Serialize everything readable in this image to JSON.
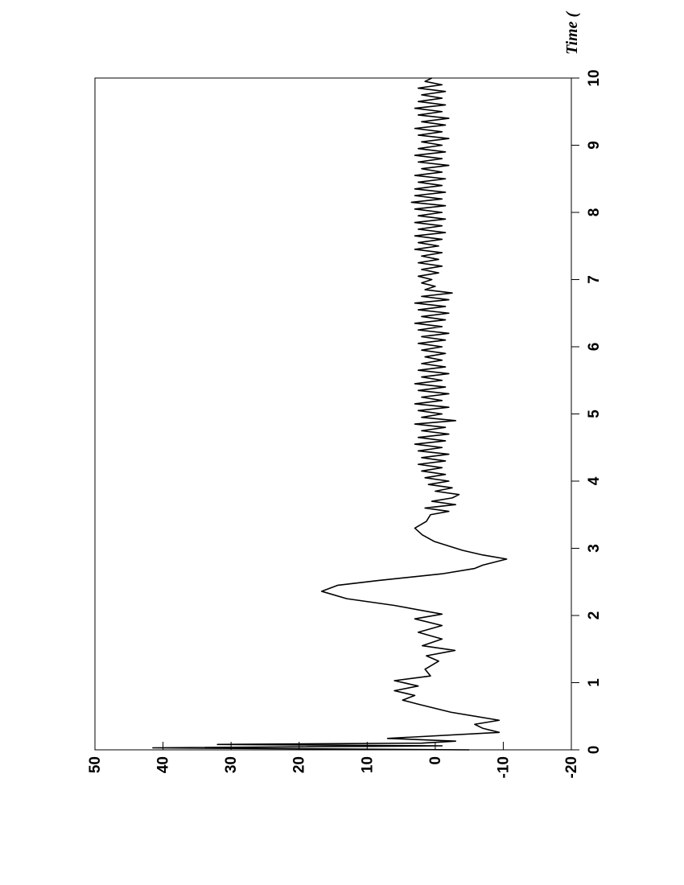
{
  "chart_data": {
    "type": "line",
    "x_label": "Time (",
    "x": [
      0,
      0.03,
      0.06,
      0.08,
      0.1,
      0.13,
      0.17,
      0.26,
      0.32,
      0.38,
      0.44,
      0.56,
      0.68,
      0.74,
      0.81,
      0.88,
      0.95,
      1.03,
      1.1,
      1.2,
      1.32,
      1.4,
      1.48,
      1.55,
      1.65,
      1.75,
      1.85,
      1.95,
      2.02,
      2.15,
      2.25,
      2.36,
      2.45,
      2.52,
      2.62,
      2.7,
      2.75,
      2.84,
      2.9,
      2.97,
      3.1,
      3.2,
      3.3,
      3.4,
      3.5,
      3.55,
      3.6,
      3.65,
      3.7,
      3.75,
      3.8,
      3.85,
      3.9,
      3.95,
      4.0,
      4.05,
      4.1,
      4.15,
      4.2,
      4.25,
      4.3,
      4.35,
      4.4,
      4.45,
      4.5,
      4.55,
      4.6,
      4.65,
      4.7,
      4.75,
      4.8,
      4.85,
      4.9,
      4.95,
      5.0,
      5.05,
      5.1,
      5.15,
      5.2,
      5.25,
      5.3,
      5.35,
      5.4,
      5.45,
      5.5,
      5.55,
      5.6,
      5.65,
      5.7,
      5.75,
      5.8,
      5.85,
      5.9,
      5.95,
      6.0,
      6.05,
      6.1,
      6.15,
      6.2,
      6.25,
      6.3,
      6.35,
      6.4,
      6.45,
      6.5,
      6.55,
      6.6,
      6.65,
      6.7,
      6.75,
      6.8,
      6.85,
      6.9,
      6.95,
      7.0,
      7.05,
      7.1,
      7.15,
      7.2,
      7.25,
      7.3,
      7.35,
      7.4,
      7.45,
      7.5,
      7.55,
      7.6,
      7.65,
      7.7,
      7.75,
      7.8,
      7.85,
      7.9,
      7.95,
      8.0,
      8.05,
      8.1,
      8.15,
      8.2,
      8.25,
      8.3,
      8.35,
      8.4,
      8.45,
      8.5,
      8.55,
      8.6,
      8.65,
      8.7,
      8.75,
      8.8,
      8.85,
      8.9,
      8.95,
      9.0,
      9.05,
      9.1,
      9.15,
      9.2,
      9.25,
      9.3,
      9.35,
      9.4,
      9.45,
      9.5,
      9.55,
      9.6,
      9.65,
      9.7,
      9.75,
      9.8,
      9.85,
      9.9,
      9.95,
      10.0
    ],
    "series": [
      {
        "color": "#000000",
        "values": [
          -5,
          41.5,
          -1,
          32,
          2,
          -3,
          7,
          -9.4,
          -7,
          -5.8,
          -9.4,
          -2.3,
          2.5,
          4.8,
          3,
          6,
          2.5,
          6,
          0.7,
          1.5,
          -0.5,
          1.3,
          -2.9,
          1.9,
          -1,
          2.5,
          -1,
          3,
          -1,
          6,
          13,
          16.7,
          14.3,
          8.4,
          -1,
          -5.8,
          -7,
          -10.5,
          -7,
          -4,
          0.1,
          1.9,
          3,
          1.3,
          0.7,
          -2,
          1.5,
          -3,
          0.5,
          -2.5,
          -3.5,
          0,
          -2.5,
          1,
          -2,
          1.5,
          -1.5,
          2,
          -1,
          2.5,
          -1.5,
          2,
          -2,
          2.5,
          -1,
          3,
          -1.5,
          2.5,
          -2,
          2,
          -1.5,
          3,
          -3,
          2,
          -1,
          2.5,
          -2,
          3,
          -1,
          2,
          -2,
          2.5,
          -1.5,
          3,
          -1,
          2,
          -2,
          2.5,
          -1.5,
          2,
          -1,
          1.5,
          -1.5,
          2,
          -1,
          2.5,
          -1.5,
          2,
          -2,
          2.5,
          -1,
          3,
          -1.5,
          2,
          -2,
          2.5,
          -1.5,
          3,
          -2,
          2,
          -2.5,
          1.5,
          0,
          2,
          0.5,
          2.5,
          -0.5,
          2,
          -1,
          2.5,
          -0.5,
          2,
          -1,
          3,
          -0.5,
          2.5,
          -1,
          3,
          -1.5,
          2.5,
          -1,
          3,
          -1.5,
          2.5,
          -1,
          3,
          -1.5,
          3.5,
          -1,
          3,
          -1.5,
          3,
          -1,
          2.5,
          -1.5,
          3,
          -1,
          2,
          -2,
          2.5,
          -1,
          3,
          -1.5,
          2.5,
          -1,
          2,
          -2,
          2.5,
          -1,
          3,
          -1.5,
          2,
          -2,
          2.5,
          -1,
          3,
          -1.5,
          2.5,
          -1,
          2,
          -1.5,
          2.5,
          -1,
          1.5,
          0.5
        ]
      }
    ],
    "xlim": [
      0,
      10
    ],
    "xticks": [
      0,
      1,
      2,
      3,
      4,
      5,
      6,
      7,
      8,
      9,
      10
    ],
    "ylim": [
      -20,
      50
    ],
    "yticks": [
      -20,
      -10,
      0,
      10,
      20,
      30,
      40,
      50
    ]
  }
}
